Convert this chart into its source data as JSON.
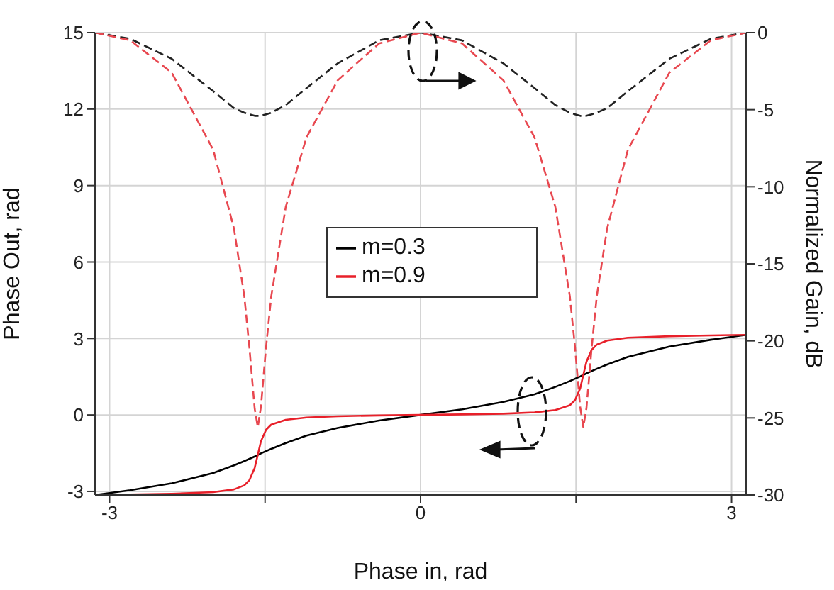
{
  "chart_data": {
    "type": "line",
    "xlabel": "Phase in, rad",
    "ylabel": "Phase Out, rad",
    "y2label": "Normalized Gain, dB",
    "x": [
      -3.14,
      -2.8,
      -2.4,
      -2.0,
      -1.8,
      -1.7,
      -1.65,
      -1.6,
      -1.57,
      -1.54,
      -1.49,
      -1.44,
      -1.3,
      -1.1,
      -0.8,
      -0.4,
      0,
      0.4,
      0.8,
      1.1,
      1.3,
      1.44,
      1.49,
      1.54,
      1.57,
      1.6,
      1.65,
      1.7,
      1.8,
      2.0,
      2.4,
      2.8,
      3.14
    ],
    "series": [
      {
        "name": "m=0.3",
        "color": "#000000",
        "line_style": "solid",
        "values": [
          -3.14,
          -2.95,
          -2.68,
          -2.28,
          -1.98,
          -1.81,
          -1.72,
          -1.63,
          -1.57,
          -1.51,
          -1.42,
          -1.33,
          -1.1,
          -0.81,
          -0.51,
          -0.22,
          0,
          0.22,
          0.51,
          0.81,
          1.1,
          1.33,
          1.42,
          1.51,
          1.57,
          1.63,
          1.72,
          1.81,
          1.98,
          2.28,
          2.68,
          2.95,
          3.14
        ]
      },
      {
        "name": "m=0.9",
        "color": "#e8202a",
        "line_style": "solid",
        "values": [
          -3.14,
          -3.12,
          -3.09,
          -3.03,
          -2.92,
          -2.76,
          -2.55,
          -2.08,
          -1.57,
          -1.04,
          -0.58,
          -0.38,
          -0.19,
          -0.1,
          -0.05,
          -0.02,
          0,
          0.02,
          0.05,
          0.1,
          0.19,
          0.38,
          0.58,
          1.04,
          1.57,
          2.08,
          2.55,
          2.76,
          2.92,
          3.03,
          3.09,
          3.12,
          3.14
        ]
      },
      {
        "color": "#222222",
        "line_style": "dashed",
        "axis": "y2",
        "values": [
          0,
          -0.4,
          -1.7,
          -3.8,
          -4.9,
          -5.2,
          -5.3,
          -5.4,
          -5.4,
          -5.4,
          -5.3,
          -5.2,
          -4.7,
          -3.6,
          -2.0,
          -0.5,
          0,
          -0.5,
          -2.0,
          -3.6,
          -4.7,
          -5.2,
          -5.3,
          -5.4,
          -5.4,
          -5.4,
          -5.3,
          -5.2,
          -4.9,
          -3.8,
          -1.7,
          -0.4,
          0
        ]
      },
      {
        "color": "#e84850",
        "line_style": "dashed",
        "axis": "y2",
        "values": [
          0,
          -0.5,
          -2.6,
          -7.6,
          -12.7,
          -17.1,
          -20.5,
          -24.4,
          -25.6,
          -24.3,
          -20.4,
          -17.1,
          -11.3,
          -6.8,
          -3.1,
          -0.7,
          0,
          -0.7,
          -3.1,
          -6.8,
          -11.3,
          -17.1,
          -20.4,
          -24.3,
          -25.6,
          -24.4,
          -20.5,
          -17.1,
          -12.7,
          -7.6,
          -2.6,
          -0.5,
          0
        ]
      }
    ],
    "xlim": [
      -3.14,
      3.14
    ],
    "xticks": [
      -3,
      {
        "value": -1.5,
        "label": null
      },
      0,
      {
        "value": 1.5,
        "label": null
      },
      3
    ],
    "ylim": [
      -3.14,
      15
    ],
    "yticks": [
      -3,
      0,
      3,
      6,
      9,
      12,
      15
    ],
    "y2lim": [
      -30,
      0
    ],
    "y2ticks": [
      -30,
      -25,
      -20,
      -15,
      -10,
      -5,
      0
    ],
    "grid": true,
    "legend": "center",
    "marker": "none"
  }
}
